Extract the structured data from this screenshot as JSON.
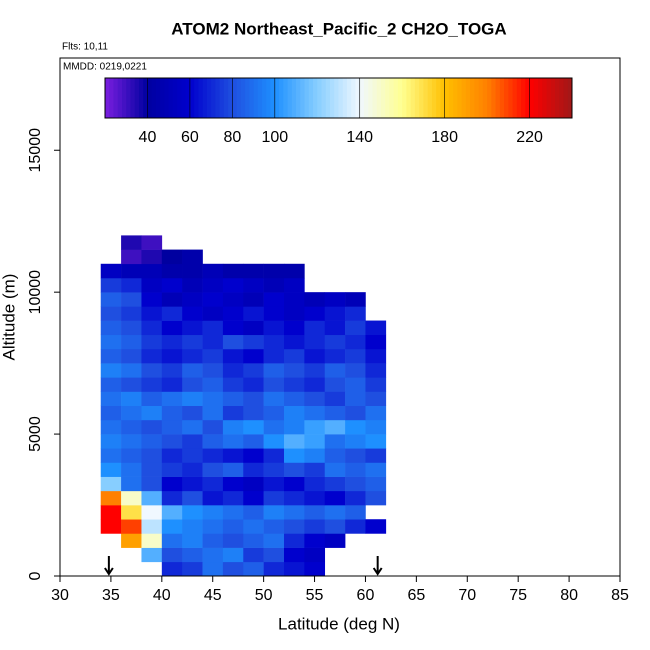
{
  "chart_data": {
    "type": "heatmap",
    "title": "ATOM2 Northeast_Pacific_2 CH2O_TOGA",
    "flights_label": "Flts: 10,11",
    "date_label": "MMDD: 0219,0221",
    "x_label": "Latitude (deg N)",
    "y_label": "Altitude (m)",
    "xlim": [
      30,
      85
    ],
    "xticks": [
      30,
      35,
      40,
      45,
      50,
      55,
      60,
      65,
      70,
      75,
      80,
      85
    ],
    "ylim": [
      0,
      18250
    ],
    "yticks": [
      0,
      5000,
      10000,
      15000
    ],
    "xbins": [
      34,
      36,
      38,
      40,
      42,
      44,
      46,
      48,
      50,
      52,
      54,
      56,
      58,
      60,
      62
    ],
    "ybins": [
      0,
      500,
      1000,
      1500,
      2000,
      2500,
      3000,
      3500,
      4000,
      4500,
      5000,
      5500,
      6000,
      6500,
      7000,
      7500,
      8000,
      8500,
      9000,
      9500,
      10000,
      10500,
      11000,
      11500,
      12000
    ],
    "values": [
      [
        null,
        null,
        null,
        70,
        75,
        90,
        80,
        85,
        70,
        65,
        60,
        null,
        null,
        null
      ],
      [
        null,
        null,
        110,
        80,
        85,
        90,
        95,
        75,
        80,
        60,
        55,
        null,
        null,
        null
      ],
      [
        null,
        190,
        150,
        90,
        95,
        85,
        80,
        85,
        90,
        70,
        60,
        55,
        null,
        null
      ],
      [
        220,
        210,
        130,
        100,
        95,
        90,
        85,
        90,
        85,
        80,
        75,
        80,
        70,
        60
      ],
      [
        220,
        170,
        140,
        110,
        100,
        95,
        90,
        85,
        95,
        90,
        85,
        90,
        85,
        null
      ],
      [
        200,
        150,
        110,
        70,
        80,
        65,
        70,
        60,
        75,
        70,
        65,
        60,
        70,
        80
      ],
      [
        120,
        90,
        80,
        60,
        65,
        70,
        60,
        55,
        65,
        60,
        70,
        75,
        80,
        85
      ],
      [
        100,
        90,
        80,
        75,
        70,
        80,
        85,
        70,
        75,
        80,
        75,
        90,
        85,
        90
      ],
      [
        90,
        85,
        80,
        70,
        75,
        70,
        65,
        60,
        70,
        100,
        95,
        85,
        80,
        75
      ],
      [
        95,
        90,
        85,
        80,
        75,
        85,
        90,
        85,
        100,
        110,
        105,
        90,
        95,
        100
      ],
      [
        90,
        85,
        80,
        85,
        90,
        80,
        95,
        100,
        90,
        95,
        105,
        110,
        100,
        95
      ],
      [
        85,
        90,
        95,
        85,
        80,
        90,
        75,
        80,
        85,
        95,
        90,
        85,
        80,
        90
      ],
      [
        90,
        95,
        85,
        90,
        95,
        90,
        85,
        80,
        90,
        85,
        80,
        75,
        85,
        80
      ],
      [
        85,
        80,
        75,
        70,
        80,
        85,
        75,
        70,
        80,
        75,
        70,
        80,
        85,
        75
      ],
      [
        95,
        90,
        80,
        75,
        85,
        80,
        70,
        75,
        85,
        80,
        75,
        85,
        80,
        70
      ],
      [
        85,
        80,
        70,
        65,
        70,
        75,
        65,
        60,
        70,
        75,
        65,
        70,
        75,
        65
      ],
      [
        90,
        85,
        75,
        70,
        75,
        70,
        80,
        75,
        70,
        65,
        70,
        75,
        70,
        60
      ],
      [
        85,
        80,
        70,
        60,
        65,
        70,
        60,
        55,
        65,
        60,
        70,
        65,
        75,
        65
      ],
      [
        80,
        75,
        65,
        70,
        60,
        55,
        60,
        65,
        60,
        55,
        60,
        65,
        70,
        null
      ],
      [
        85,
        80,
        60,
        50,
        55,
        60,
        55,
        50,
        60,
        55,
        50,
        55,
        50,
        null
      ],
      [
        75,
        70,
        55,
        60,
        50,
        55,
        60,
        55,
        50,
        55,
        null,
        null,
        null,
        null
      ],
      [
        55,
        50,
        50,
        45,
        45,
        50,
        45,
        45,
        45,
        45,
        null,
        null,
        null,
        null
      ],
      [
        null,
        30,
        35,
        40,
        45,
        null,
        null,
        null,
        null,
        null,
        null,
        null,
        null,
        null
      ],
      [
        null,
        35,
        30,
        null,
        null,
        null,
        null,
        null,
        null,
        null,
        null,
        null,
        null,
        null
      ]
    ],
    "arrow_lat": [
      34.8,
      61.2
    ],
    "clim": [
      20,
      240
    ],
    "cbar_ticks": [
      40,
      60,
      80,
      100,
      140,
      180,
      220
    ],
    "colormap": [
      "#7b1fe0",
      "#0000a0",
      "#0000cd",
      "#1f4fe0",
      "#1e90ff",
      "#87ceff",
      "#f0f8ff",
      "#ffff90",
      "#ffc000",
      "#ff8000",
      "#ff0000",
      "#a01818"
    ]
  }
}
